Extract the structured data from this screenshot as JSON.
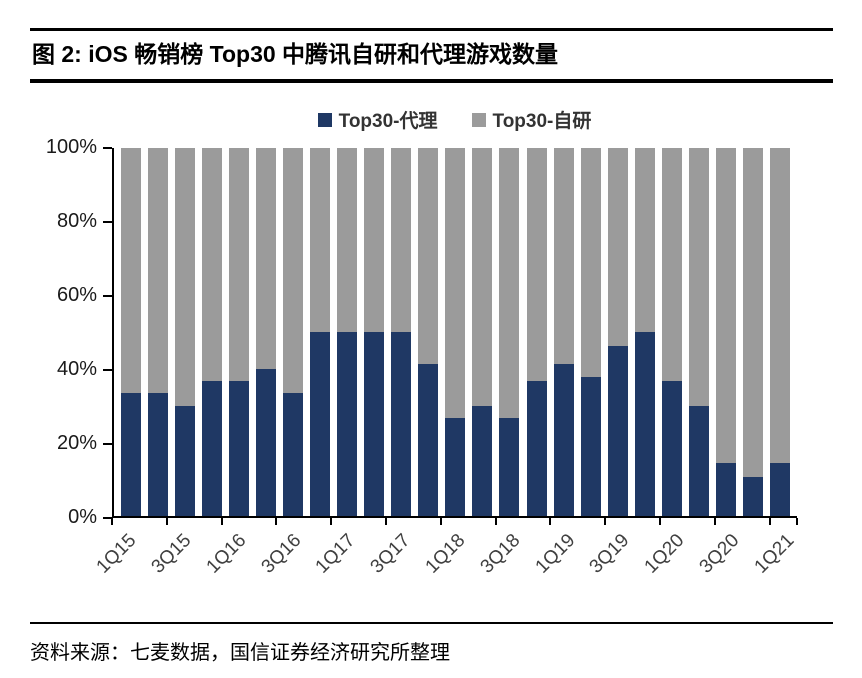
{
  "figure": {
    "title": "图 2:  iOS 畅销榜 Top30 中腾讯自研和代理游戏数量",
    "source": "资料来源：七麦数据，国信证券经济研究所整理"
  },
  "chart_data": {
    "type": "bar",
    "stacked": true,
    "stack_unit": "%",
    "title": "iOS 畅销榜 Top30 中腾讯自研和代理游戏数量",
    "grid": false,
    "legend_position": "top",
    "ylim": [
      0,
      100
    ],
    "y_ticks": [
      "0%",
      "20%",
      "40%",
      "60%",
      "80%",
      "100%"
    ],
    "categories": [
      "1Q15",
      "2Q15",
      "3Q15",
      "4Q15",
      "1Q16",
      "2Q16",
      "3Q16",
      "4Q16",
      "1Q17",
      "2Q17",
      "3Q17",
      "4Q17",
      "1Q18",
      "2Q18",
      "3Q18",
      "4Q18",
      "1Q19",
      "2Q19",
      "3Q19",
      "4Q19",
      "1Q20",
      "2Q20",
      "3Q20",
      "4Q20",
      "1Q21"
    ],
    "x_axis_shown_labels": [
      "1Q15",
      "3Q15",
      "1Q16",
      "3Q16",
      "1Q17",
      "3Q17",
      "1Q18",
      "3Q18",
      "1Q19",
      "3Q19",
      "1Q20",
      "3Q20",
      "1Q21"
    ],
    "series": [
      {
        "name": "Top30-代理",
        "color": "#1F3864",
        "values": [
          33.3,
          33.3,
          30,
          36.7,
          36.7,
          40,
          33.3,
          50,
          50,
          50,
          50,
          41.4,
          26.7,
          30,
          26.7,
          36.7,
          41.4,
          37.9,
          46.2,
          50,
          36.7,
          30,
          14.3,
          10.7,
          14.3
        ]
      },
      {
        "name": "Top30-自研",
        "color": "#9B9B9B",
        "values": [
          66.7,
          66.7,
          70,
          63.3,
          63.3,
          60,
          66.7,
          50,
          50,
          50,
          50,
          58.6,
          73.3,
          70,
          73.3,
          63.3,
          58.6,
          62.1,
          53.8,
          50,
          63.3,
          70,
          85.7,
          89.3,
          85.7
        ]
      }
    ]
  }
}
